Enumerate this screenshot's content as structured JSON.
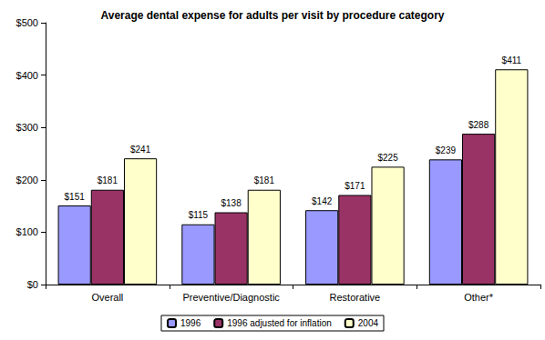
{
  "chart_data": {
    "type": "bar",
    "title": "Average dental expense for adults per visit by procedure category",
    "categories": [
      "Overall",
      "Preventive/Diagnostic",
      "Restorative",
      "Other*"
    ],
    "series": [
      {
        "name": "1996",
        "color": "#9999ff",
        "values": [
          151,
          115,
          142,
          239
        ],
        "value_labels": [
          "$151",
          "$115",
          "$142",
          "$239"
        ]
      },
      {
        "name": "1996 adjusted for inflation",
        "color": "#993366",
        "values": [
          181,
          138,
          171,
          288
        ],
        "value_labels": [
          "$181",
          "$138",
          "$171",
          "$288"
        ]
      },
      {
        "name": "2004",
        "color": "#ffffcc",
        "values": [
          241,
          181,
          225,
          411
        ],
        "value_labels": [
          "$241",
          "$181",
          "$225",
          "$411"
        ]
      }
    ],
    "ylim": [
      0,
      500
    ],
    "yticks": [
      {
        "value": 0,
        "label": "$0"
      },
      {
        "value": 100,
        "label": "$100"
      },
      {
        "value": 200,
        "label": "$200"
      },
      {
        "value": 300,
        "label": "$300"
      },
      {
        "value": 400,
        "label": "$400"
      },
      {
        "value": 500,
        "label": "$500"
      }
    ],
    "grid": false,
    "legend": "bottom",
    "data_labels": true
  }
}
